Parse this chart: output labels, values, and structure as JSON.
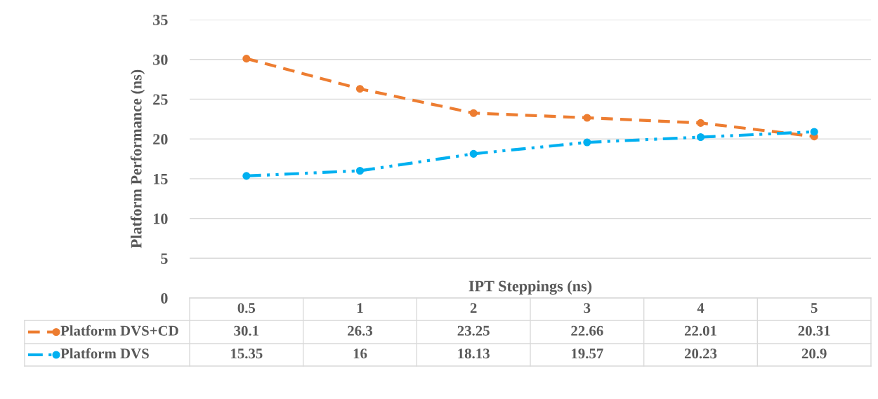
{
  "chart_data": {
    "type": "line",
    "xlabel": "IPT Steppings (ns)",
    "ylabel": "Platform Performance (ns)",
    "categories": [
      "0.5",
      "1",
      "2",
      "3",
      "4",
      "5"
    ],
    "series": [
      {
        "name": "Platform DVS+CD",
        "color": "#ed7d31",
        "line_style": "dashed",
        "values": [
          30.1,
          26.3,
          23.25,
          22.66,
          22.01,
          20.31
        ]
      },
      {
        "name": "Platform DVS",
        "color": "#00b0f0",
        "line_style": "dashdot",
        "values": [
          15.35,
          16,
          18.13,
          19.57,
          20.23,
          20.9
        ]
      }
    ],
    "ylim": [
      0,
      35
    ],
    "yticks": [
      0,
      5,
      10,
      15,
      20,
      25,
      30,
      35
    ],
    "grid": "y",
    "marker": "circle",
    "data_labels": true,
    "legend": "bottom",
    "tick_labels": "y"
  }
}
